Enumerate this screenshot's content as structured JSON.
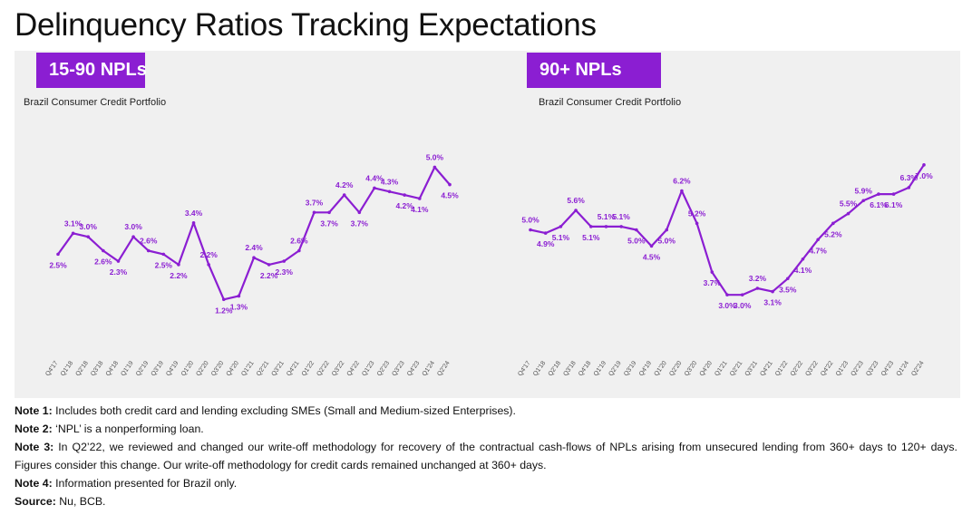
{
  "title": "Delinquency Ratios Tracking Expectations",
  "chart_data": [
    {
      "type": "line",
      "tag": "15-90 NPLs",
      "subtitle": "Brazil Consumer Credit Portfolio",
      "color": "#8b1ed2",
      "categories": [
        "Q4'17",
        "Q1'18",
        "Q2'18",
        "Q3'18",
        "Q4'18",
        "Q1'19",
        "Q2'19",
        "Q3'19",
        "Q4'19",
        "Q1'20",
        "Q2'20",
        "Q3'20",
        "Q4'20",
        "Q1'21",
        "Q2'21",
        "Q3'21",
        "Q4'21",
        "Q1'22",
        "Q2'22",
        "Q3'22",
        "Q4'22",
        "Q1'23",
        "Q2'23",
        "Q3'23",
        "Q4'23",
        "Q1'24",
        "Q2'24"
      ],
      "values": [
        2.5,
        3.1,
        3.0,
        2.6,
        2.3,
        3.0,
        2.6,
        2.5,
        2.2,
        3.4,
        2.2,
        1.2,
        1.3,
        2.4,
        2.2,
        2.3,
        2.6,
        3.7,
        3.7,
        4.2,
        3.7,
        4.4,
        4.3,
        4.2,
        4.1,
        5.0,
        4.5
      ],
      "labels": [
        "2.5%",
        "3.1%",
        "3.0%",
        "2.6%",
        "2.3%",
        "3.0%",
        "2.6%",
        "2.5%",
        "2.2%",
        "3.4%",
        "2.2%",
        "1.2%",
        "1.3%",
        "2.4%",
        "2.2%",
        "2.3%",
        "2.6%",
        "3.7%",
        "3.7%",
        "4.2%",
        "3.7%",
        "4.4%",
        "4.3%",
        "4.2%",
        "4.1%",
        "5.0%",
        "4.5%"
      ],
      "label_positions": [
        "below",
        "above",
        "above",
        "below",
        "below",
        "above",
        "above",
        "below",
        "below",
        "above",
        "above",
        "below",
        "below",
        "above",
        "below",
        "below",
        "above",
        "above",
        "below",
        "above",
        "below",
        "above",
        "above",
        "below",
        "below",
        "above",
        "below"
      ],
      "ylim": [
        0.4,
        6.0
      ]
    },
    {
      "type": "line",
      "tag": "90+ NPLs",
      "subtitle": "Brazil Consumer Credit Portfolio",
      "color": "#8b1ed2",
      "categories": [
        "Q4'17",
        "Q1'18",
        "Q2'18",
        "Q3'18",
        "Q4'18",
        "Q1'19",
        "Q2'19",
        "Q3'19",
        "Q4'19",
        "Q1'20",
        "Q2'20",
        "Q3'20",
        "Q4'20",
        "Q1'21",
        "Q2'21",
        "Q3'21",
        "Q4'21",
        "Q1'22",
        "Q2'22",
        "Q3'22",
        "Q4'22",
        "Q1'23",
        "Q2'23",
        "Q3'23",
        "Q4'23",
        "Q1'24",
        "Q2'24"
      ],
      "values": [
        5.0,
        4.9,
        5.1,
        5.6,
        5.1,
        5.1,
        5.1,
        5.0,
        4.5,
        5.0,
        6.2,
        5.2,
        3.7,
        3.0,
        3.0,
        3.2,
        3.1,
        3.5,
        4.1,
        4.7,
        5.2,
        5.5,
        5.9,
        6.1,
        6.1,
        6.3,
        7.0
      ],
      "labels": [
        "5.0%",
        "4.9%",
        "5.1%",
        "5.6%",
        "5.1%",
        "5.1%",
        "5.1%",
        "5.0%",
        "4.5%",
        "5.0%",
        "6.2%",
        "5.2%",
        "3.7%",
        "3.0%",
        "3.0%",
        "3.2%",
        "3.1%",
        "3.5%",
        "4.1%",
        "4.7%",
        "5.2%",
        "5.5%",
        "5.9%",
        "6.1%",
        "6.1%",
        "6.3%",
        "7.0%"
      ],
      "label_positions": [
        "above",
        "below",
        "below",
        "above",
        "below",
        "above",
        "above",
        "below",
        "below",
        "below",
        "above",
        "above",
        "below",
        "below",
        "below",
        "above",
        "below",
        "below",
        "below",
        "below",
        "below",
        "above",
        "above",
        "below",
        "below",
        "above",
        "below"
      ],
      "ylim": [
        2.0,
        8.0
      ]
    }
  ],
  "notes": [
    {
      "label": "Note 1:",
      "text": "Includes both credit card and lending excluding SMEs (Small and Medium-sized Enterprises)."
    },
    {
      "label": "Note 2:",
      "text": "‘NPL’ is a nonperforming loan."
    },
    {
      "label": "Note 3:",
      "text": "In Q2’22, we reviewed and changed our write-off methodology for recovery of the contractual cash-flows of NPLs arising from unsecured lending from 360+ days to 120+ days. Figures consider this change. Our write-off methodology for credit cards remained unchanged at 360+ days."
    },
    {
      "label": "Note 4:",
      "text": "Information presented for Brazil only."
    },
    {
      "label": "Source:",
      "text": "Nu, BCB."
    }
  ]
}
